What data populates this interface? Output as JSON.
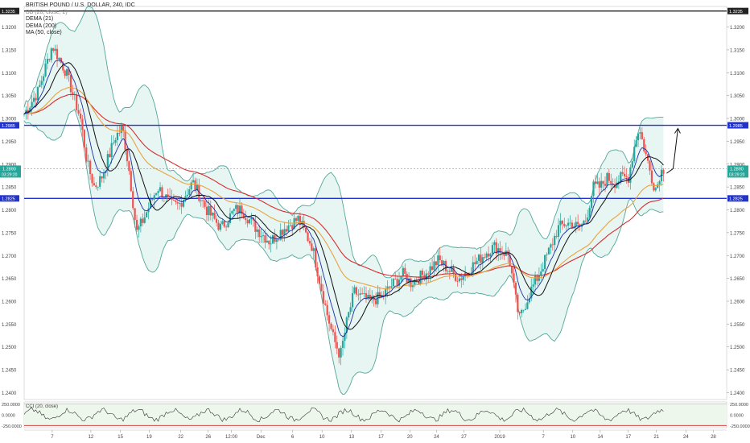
{
  "legend": {
    "symbol": "BRITISH POUND / U.S. DOLLAR, 240, IDC",
    "bb": "BB (20, close, 2)",
    "dema21": "DEMA (21)",
    "dema200": "DEMA (200)",
    "ma50": "MA (50, close)"
  },
  "cci_label": "CCI (20, close)",
  "price_badges": {
    "last_price": "1.2890",
    "countdown": "03:29:20"
  },
  "colors": {
    "up": "#26a69a",
    "down": "#ef5350",
    "bb_band": "#52a79a",
    "bb_fill": "#e7f5f3",
    "dema21": "#1c2fa8",
    "dema200": "#e8a340",
    "ma50": "#111111",
    "red_ma": "#d62e2e",
    "level": "#2233cc",
    "cci_fill": "#eef7ec",
    "cci_band": "#cc2222"
  },
  "chart_data": {
    "type": "candlestick",
    "title": "BRITISH POUND / U.S. DOLLAR, 240, IDC",
    "y_axis": {
      "ticks": [
        "1.3200",
        "1.3150",
        "1.3100",
        "1.3050",
        "1.3000",
        "1.2950",
        "1.2900",
        "1.2850",
        "1.2800",
        "1.2750",
        "1.2700",
        "1.2650",
        "1.2600",
        "1.2550",
        "1.2500",
        "1.2450",
        "1.2400"
      ],
      "range": [
        1.2385,
        1.3245
      ],
      "position": "right"
    },
    "x_axis": {
      "ticks": [
        "7",
        "12",
        "15",
        "19",
        "22",
        "26",
        "12:00",
        "Dec",
        "6",
        "10",
        "13",
        "17",
        "20",
        "24",
        "27",
        "2019",
        "7",
        "10",
        "14",
        "17",
        "21",
        "24",
        "28"
      ],
      "x_range": [
        0,
        1
      ],
      "tick_x": [
        0.04,
        0.095,
        0.137,
        0.178,
        0.223,
        0.262,
        0.295,
        0.337,
        0.382,
        0.424,
        0.466,
        0.508,
        0.549,
        0.587,
        0.626,
        0.677,
        0.739,
        0.781,
        0.82,
        0.86,
        0.9,
        0.942,
        0.981
      ]
    },
    "horizontal_levels": [
      {
        "price": 1.3235,
        "label": "1.3235",
        "color": "#222222"
      },
      {
        "price": 1.2985,
        "label": "1.2985",
        "color": "#2233cc"
      },
      {
        "price": 1.2825,
        "label": "1.2825",
        "color": "#2233cc"
      }
    ],
    "current_price": 1.289,
    "ohlc_keyframes": [
      [
        0.0,
        1.301
      ],
      [
        0.02,
        1.306
      ],
      [
        0.04,
        1.316
      ],
      [
        0.06,
        1.31
      ],
      [
        0.08,
        1.3
      ],
      [
        0.09,
        1.29
      ],
      [
        0.1,
        1.285
      ],
      [
        0.11,
        1.287
      ],
      [
        0.13,
        1.296
      ],
      [
        0.14,
        1.298
      ],
      [
        0.15,
        1.288
      ],
      [
        0.16,
        1.275
      ],
      [
        0.17,
        1.278
      ],
      [
        0.19,
        1.285
      ],
      [
        0.21,
        1.281
      ],
      [
        0.22,
        1.281
      ],
      [
        0.24,
        1.286
      ],
      [
        0.26,
        1.28
      ],
      [
        0.28,
        1.276
      ],
      [
        0.3,
        1.28
      ],
      [
        0.31,
        1.28
      ],
      [
        0.33,
        1.276
      ],
      [
        0.35,
        1.273
      ],
      [
        0.37,
        1.276
      ],
      [
        0.39,
        1.278
      ],
      [
        0.41,
        1.272
      ],
      [
        0.43,
        1.258
      ],
      [
        0.44,
        1.252
      ],
      [
        0.45,
        1.248
      ],
      [
        0.46,
        1.256
      ],
      [
        0.47,
        1.262
      ],
      [
        0.49,
        1.26
      ],
      [
        0.51,
        1.261
      ],
      [
        0.52,
        1.263
      ],
      [
        0.54,
        1.266
      ],
      [
        0.55,
        1.264
      ],
      [
        0.57,
        1.266
      ],
      [
        0.59,
        1.269
      ],
      [
        0.61,
        1.266
      ],
      [
        0.62,
        1.265
      ],
      [
        0.64,
        1.268
      ],
      [
        0.66,
        1.271
      ],
      [
        0.67,
        1.272
      ],
      [
        0.69,
        1.27
      ],
      [
        0.7,
        1.26
      ],
      [
        0.705,
        1.256
      ],
      [
        0.71,
        1.258
      ],
      [
        0.72,
        1.262
      ],
      [
        0.73,
        1.265
      ],
      [
        0.75,
        1.272
      ],
      [
        0.76,
        1.276
      ],
      [
        0.77,
        1.277
      ],
      [
        0.78,
        1.277
      ],
      [
        0.79,
        1.276
      ],
      [
        0.8,
        1.278
      ],
      [
        0.81,
        1.285
      ],
      [
        0.82,
        1.285
      ],
      [
        0.83,
        1.287
      ],
      [
        0.84,
        1.286
      ],
      [
        0.85,
        1.287
      ],
      [
        0.86,
        1.287
      ],
      [
        0.87,
        1.295
      ],
      [
        0.875,
        1.298
      ],
      [
        0.88,
        1.295
      ],
      [
        0.89,
        1.289
      ],
      [
        0.895,
        1.286
      ],
      [
        0.9,
        1.2845
      ],
      [
        0.905,
        1.288
      ],
      [
        0.91,
        1.289
      ]
    ],
    "series": [
      {
        "name": "DEMA (21)",
        "color": "#1c2fa8"
      },
      {
        "name": "DEMA (200)",
        "color": "#e8a340"
      },
      {
        "name": "MA (50, close)",
        "color": "#111111"
      },
      {
        "name": "BB (20, close, 2)",
        "color": "#52a79a"
      }
    ],
    "indicator_panel": {
      "name": "CCI (20, close)",
      "ticks": [
        "250.0000",
        "0.0000",
        "-250.0000"
      ],
      "range": [
        -300,
        300
      ]
    }
  }
}
